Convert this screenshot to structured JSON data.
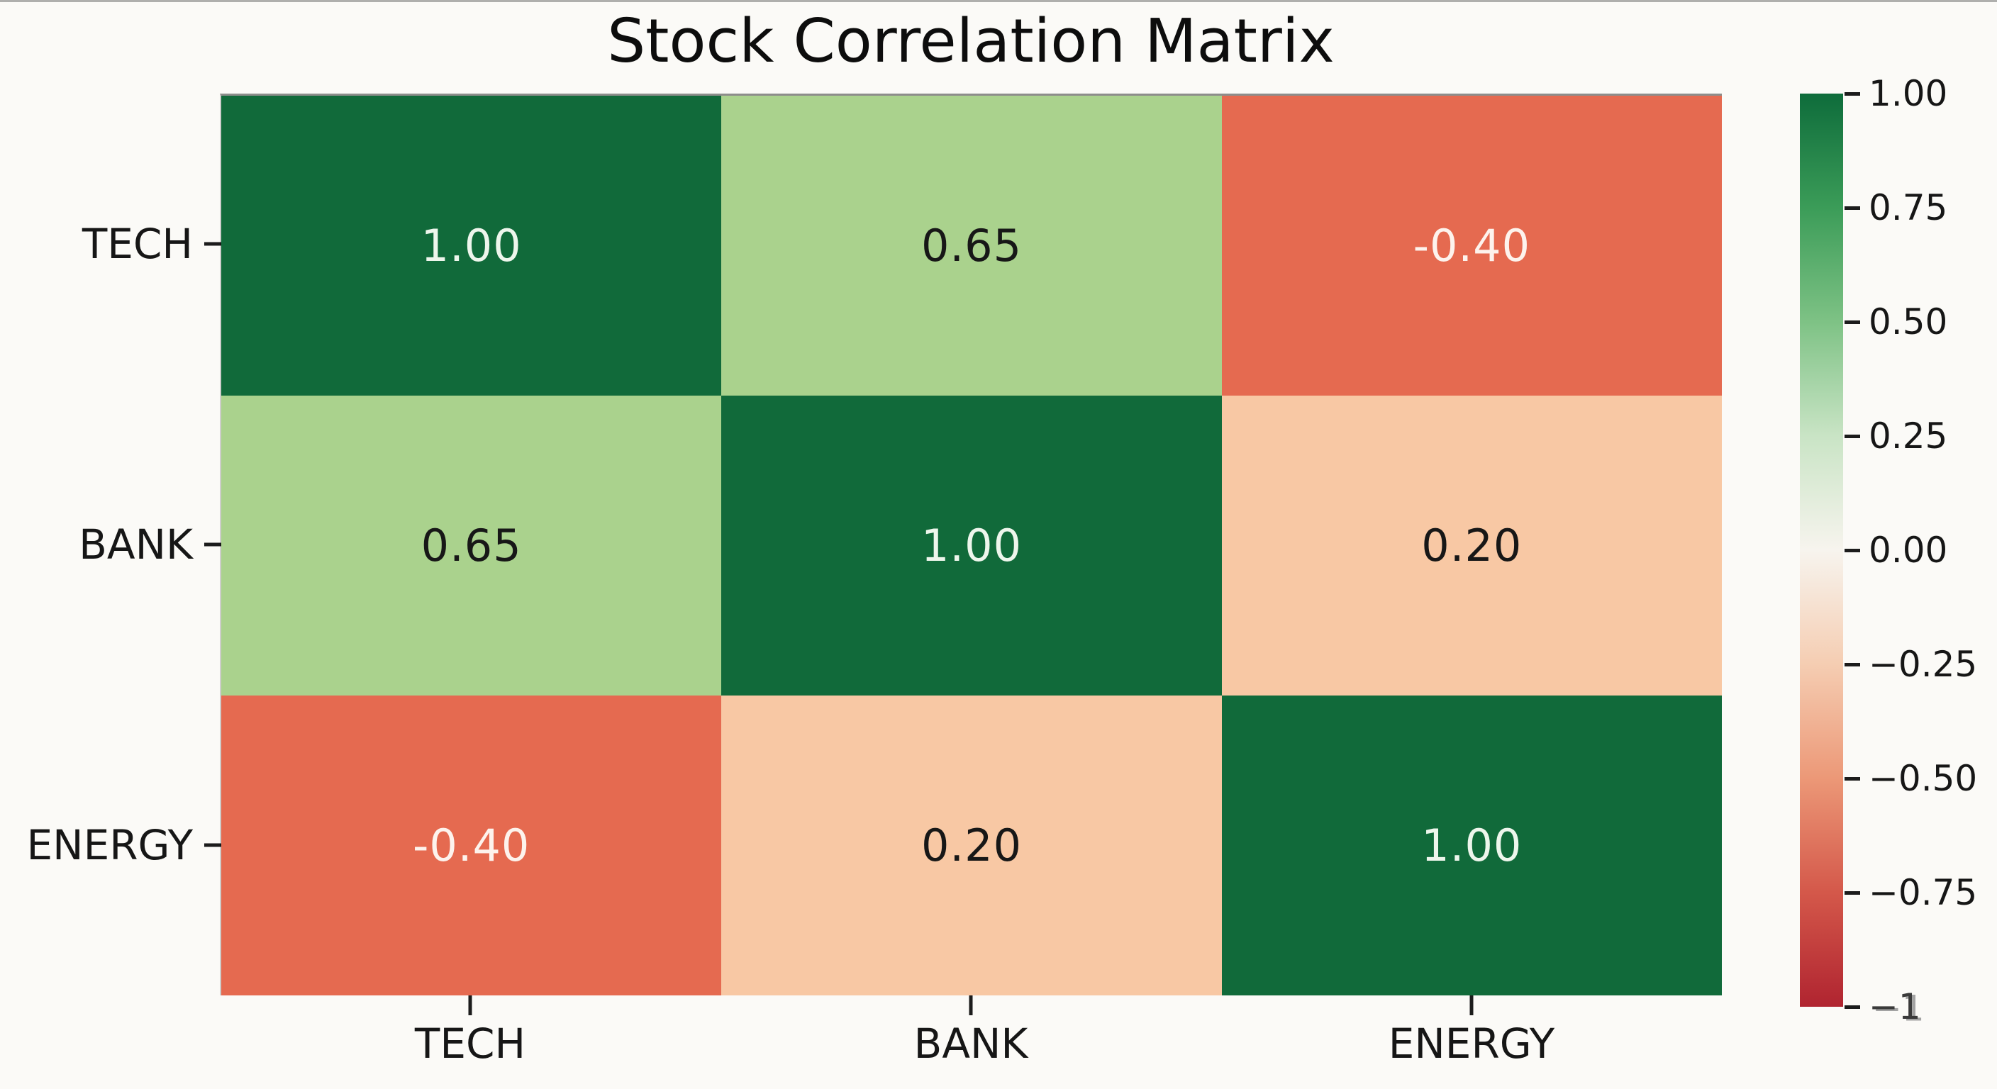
{
  "figure": {
    "title": "Stock Correlation Matrix",
    "background_color": "#fbfaf7",
    "text_color": "#161616"
  },
  "chart_data": {
    "type": "heatmap",
    "title": "Stock Correlation Matrix",
    "x_categories": [
      "TECH",
      "BANK",
      "ENERGY"
    ],
    "y_categories": [
      "TECH",
      "BANK",
      "ENERGY"
    ],
    "matrix": [
      [
        1.0,
        0.65,
        -0.4
      ],
      [
        0.65,
        1.0,
        0.2
      ],
      [
        -0.4,
        0.2,
        1.0
      ]
    ],
    "cell_labels": [
      [
        "1.00",
        "0.65",
        "-0.40"
      ],
      [
        "0.65",
        "1.00",
        "0.20"
      ],
      [
        "-0.40",
        "0.20",
        "1.00"
      ]
    ],
    "value_styles": {
      "1.00": {
        "bg": "#116a3a",
        "fg": "#eef6ec"
      },
      "0.65": {
        "bg": "#aad28d",
        "fg": "#171717"
      },
      "0.20": {
        "bg": "#f8c8a4",
        "fg": "#171717"
      },
      "-0.40": {
        "bg": "#e56a50",
        "fg": "#fdf3ed"
      }
    },
    "grid": false,
    "legend_position": "right",
    "colorbar": {
      "min": -1,
      "max": 1,
      "ticks": [
        {
          "label": "1.00",
          "muted": false
        },
        {
          "label": "0.75",
          "muted": false
        },
        {
          "label": "0.50",
          "muted": false
        },
        {
          "label": "0.25",
          "muted": false
        },
        {
          "label": "0.00",
          "muted": false
        },
        {
          "label": "−0.25",
          "muted": false
        },
        {
          "label": "−0.50",
          "muted": false
        },
        {
          "label": "−0.75",
          "muted": false
        },
        {
          "label": "−1",
          "muted": true
        }
      ],
      "gradient_top_to_bottom": [
        "#0e6c3b",
        "#3b9c58",
        "#7ec285",
        "#c9e4c5",
        "#f7f4ee",
        "#f5cdb2",
        "#ec9877",
        "#d4584a",
        "#b02430"
      ]
    }
  }
}
